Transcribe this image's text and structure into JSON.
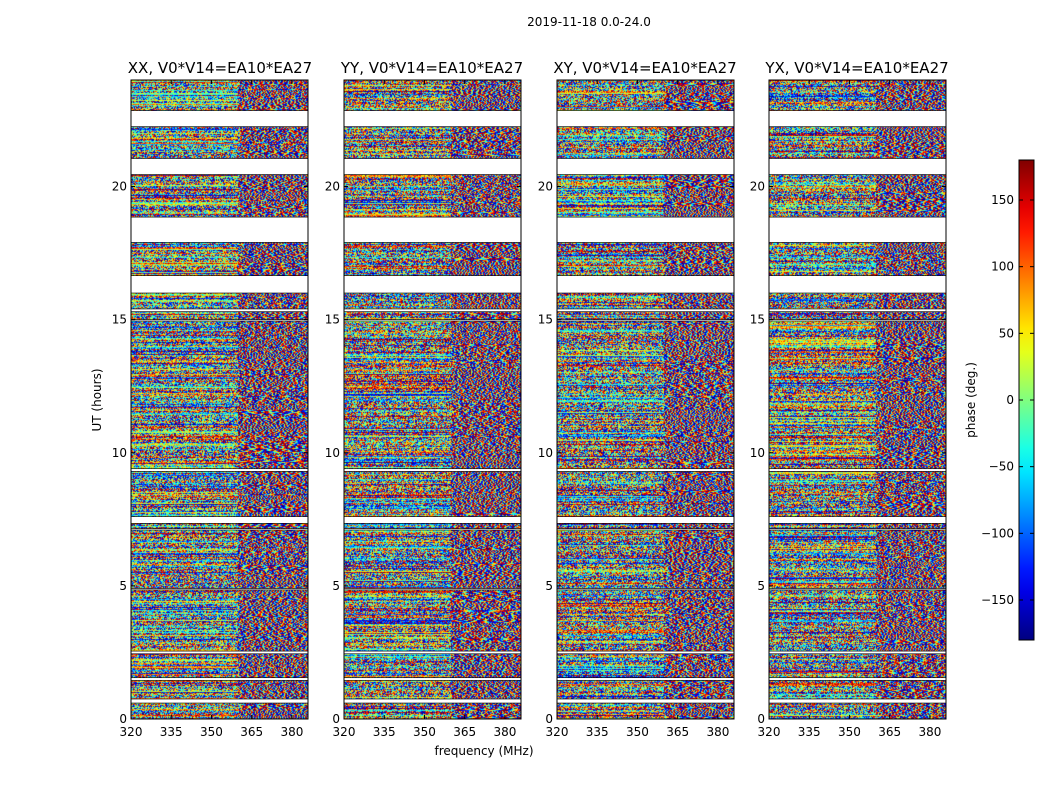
{
  "chart_data": {
    "type": "heatmap",
    "suptitle": "2019-11-18 0.0-24.0",
    "xlabel": "frequency (MHz)",
    "ylabel": "UT (hours)",
    "xlim": [
      320,
      386
    ],
    "ylim": [
      0,
      24
    ],
    "xticks": [
      320,
      335,
      350,
      365,
      380
    ],
    "yticks": [
      0,
      5,
      10,
      15,
      20
    ],
    "panels": [
      {
        "title": "XX, V0*V14=EA10*EA27",
        "id": "xx"
      },
      {
        "title": "YY, V0*V14=EA10*EA27",
        "id": "yy"
      },
      {
        "title": "XY, V0*V14=EA10*EA27",
        "id": "xy"
      },
      {
        "title": "YX, V0*V14=EA10*EA27",
        "id": "yx"
      }
    ],
    "colorbar": {
      "label": "phase (deg.)",
      "range": [
        -180,
        180
      ],
      "ticks": [
        150,
        100,
        50,
        0,
        -50,
        -100,
        -150
      ],
      "tick_labels": [
        "150",
        "100",
        "50",
        "0",
        "−50",
        "−100",
        "−150"
      ],
      "colormap": "jet"
    },
    "time_blocks": [
      [
        0.0,
        0.6
      ],
      [
        0.75,
        1.45
      ],
      [
        1.55,
        2.45
      ],
      [
        2.55,
        4.85
      ],
      [
        4.9,
        7.1
      ],
      [
        7.15,
        7.35
      ],
      [
        7.6,
        9.3
      ],
      [
        9.4,
        14.95
      ],
      [
        15.0,
        15.3
      ],
      [
        15.4,
        16.0
      ],
      [
        16.65,
        17.9
      ],
      [
        18.85,
        20.45
      ],
      [
        21.05,
        22.25
      ],
      [
        22.85,
        24.0
      ]
    ],
    "frequency_transition_mhz": 360
  }
}
